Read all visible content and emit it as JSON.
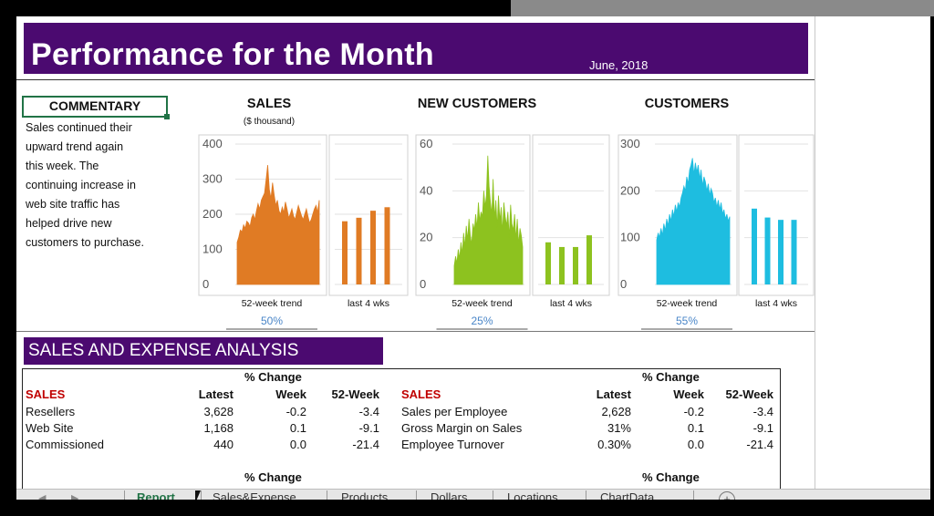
{
  "header": {
    "title": "Performance for the Month",
    "date": "June, 2018"
  },
  "commentary": {
    "heading": "COMMENTARY",
    "lines": [
      "Sales continued their",
      "upward trend again",
      "this week. The",
      "continuing increase in",
      "web site traffic has",
      "helped drive new",
      "customers to purchase."
    ]
  },
  "charts": [
    {
      "title": "SALES",
      "subtitle": "($ thousand)",
      "trend_label": "52-week trend",
      "recent_label": "last 4 wks",
      "percent": "50%"
    },
    {
      "title": "NEW CUSTOMERS",
      "subtitle": "",
      "trend_label": "52-week trend",
      "recent_label": "last 4 wks",
      "percent": "25%"
    },
    {
      "title": "CUSTOMERS",
      "subtitle": "",
      "trend_label": "52-week trend",
      "recent_label": "last 4 wks",
      "percent": "55%"
    }
  ],
  "chart_data": [
    {
      "type": "area",
      "title": "SALES",
      "subtitle": "($ thousand)",
      "color": "#e07b24",
      "ylim": [
        0,
        400
      ],
      "yticks": [
        0,
        100,
        200,
        300,
        400
      ],
      "trend_label": "52-week trend",
      "grid": true,
      "values": [
        120,
        135,
        155,
        150,
        170,
        160,
        180,
        175,
        165,
        190,
        200,
        185,
        210,
        230,
        215,
        240,
        250,
        260,
        300,
        340,
        270,
        245,
        290,
        255,
        225,
        240,
        210,
        200,
        220,
        205,
        235,
        215,
        190,
        200,
        215,
        195,
        185,
        205,
        225,
        210,
        195,
        185,
        200,
        215,
        195,
        175,
        185,
        200,
        215,
        225,
        205,
        240
      ]
    },
    {
      "type": "bar",
      "title": "SALES",
      "color": "#e07b24",
      "ylim": [
        0,
        400
      ],
      "recent_label": "last 4 wks",
      "grid": true,
      "values": [
        180,
        190,
        210,
        220
      ]
    },
    {
      "type": "area",
      "title": "NEW CUSTOMERS",
      "color": "#8dc21f",
      "ylim": [
        0,
        60
      ],
      "yticks": [
        0,
        20,
        40,
        60
      ],
      "trend_label": "52-week trend",
      "grid": true,
      "values": [
        8,
        12,
        9,
        15,
        11,
        18,
        13,
        22,
        16,
        25,
        19,
        28,
        21,
        17,
        26,
        23,
        30,
        24,
        35,
        27,
        31,
        29,
        40,
        33,
        38,
        55,
        42,
        35,
        30,
        45,
        28,
        36,
        24,
        38,
        27,
        33,
        22,
        35,
        29,
        25,
        31,
        20,
        34,
        26,
        23,
        30,
        19,
        28,
        17,
        24,
        21,
        16
      ]
    },
    {
      "type": "bar",
      "title": "NEW CUSTOMERS",
      "color": "#8dc21f",
      "ylim": [
        0,
        60
      ],
      "recent_label": "last 4 wks",
      "grid": true,
      "values": [
        18,
        16,
        16,
        21
      ]
    },
    {
      "type": "area",
      "title": "CUSTOMERS",
      "color": "#1ebde0",
      "ylim": [
        0,
        300
      ],
      "yticks": [
        0,
        100,
        200,
        300
      ],
      "trend_label": "52-week trend",
      "grid": true,
      "values": [
        95,
        110,
        100,
        120,
        105,
        130,
        115,
        140,
        125,
        150,
        135,
        160,
        145,
        170,
        155,
        175,
        165,
        185,
        195,
        210,
        200,
        230,
        215,
        245,
        255,
        270,
        235,
        260,
        240,
        255,
        225,
        245,
        210,
        230,
        220,
        200,
        215,
        190,
        205,
        195,
        175,
        185,
        165,
        180,
        160,
        175,
        150,
        160,
        140,
        150,
        135,
        145
      ]
    },
    {
      "type": "bar",
      "title": "CUSTOMERS",
      "color": "#1ebde0",
      "ylim": [
        0,
        300
      ],
      "recent_label": "last 4 wks",
      "grid": true,
      "values": [
        162,
        143,
        138,
        138
      ]
    }
  ],
  "analysis": {
    "title": "SALES AND EXPENSE ANALYSIS",
    "pct_change_label": "% Change",
    "left": {
      "headers": [
        "SALES",
        "Latest",
        "Week",
        "52-Week"
      ],
      "rows": [
        [
          "Resellers",
          "3,628",
          "-0.2",
          "-3.4"
        ],
        [
          "Web Site",
          "1,168",
          "0.1",
          "-9.1"
        ],
        [
          "Commissioned",
          "440",
          "0.0",
          "-21.4"
        ]
      ]
    },
    "right": {
      "headers": [
        "SALES",
        "Latest",
        "Week",
        "52-Week"
      ],
      "rows": [
        [
          "Sales per Employee",
          "2,628",
          "-0.2",
          "-3.4"
        ],
        [
          "Gross Margin on Sales",
          "31%",
          "0.1",
          "-9.1"
        ],
        [
          "Employee Turnover",
          "0.30%",
          "0.0",
          "-21.4"
        ]
      ]
    }
  },
  "tabs": [
    "Report",
    "Sales&Expense",
    "Products",
    "Dollars",
    "Locations",
    "ChartData"
  ],
  "add_tab_icon": "plus-circle-icon"
}
